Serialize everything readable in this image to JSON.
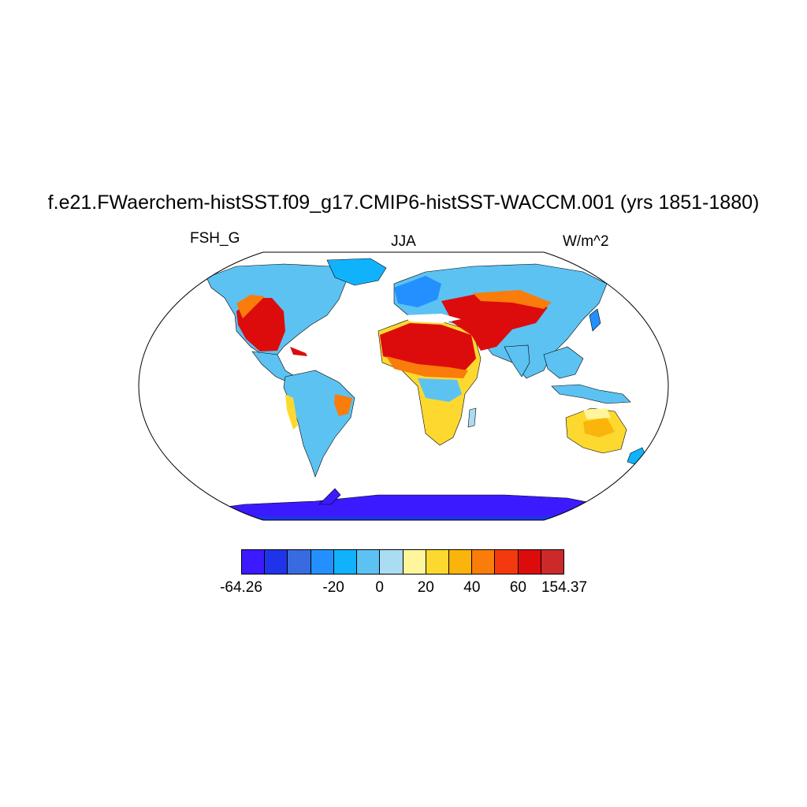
{
  "title": "f.e21.FWaerchem-histSST.f09_g17.CMIP6-histSST-WACCM.001 (yrs 1851-1880)",
  "left_label": "FSH_G",
  "center_label": "JJA",
  "right_label": "W/m^2",
  "colorbar": {
    "colors": [
      "#3b1aff",
      "#1f34ea",
      "#3a6ae0",
      "#2490ff",
      "#10b3fb",
      "#5cc2f2",
      "#aadcf3",
      "#fff59d",
      "#fdd930",
      "#fbb40b",
      "#fa7c0a",
      "#f5390f",
      "#dd0c0c",
      "#cc2a2a"
    ],
    "labels": [
      "-64.26",
      "-20",
      "0",
      "20",
      "40",
      "60",
      "154.37"
    ]
  },
  "field_colors": {
    "ocean": "#ffffff",
    "land_cool": "#5cc2f2",
    "land_light": "#aadcf3",
    "land_mid": "#2490ff",
    "warm_yellow": "#fdd930",
    "warm_orange": "#fa7c0a",
    "hot_red": "#dd0c0c",
    "ice": "#3b1aff"
  }
}
